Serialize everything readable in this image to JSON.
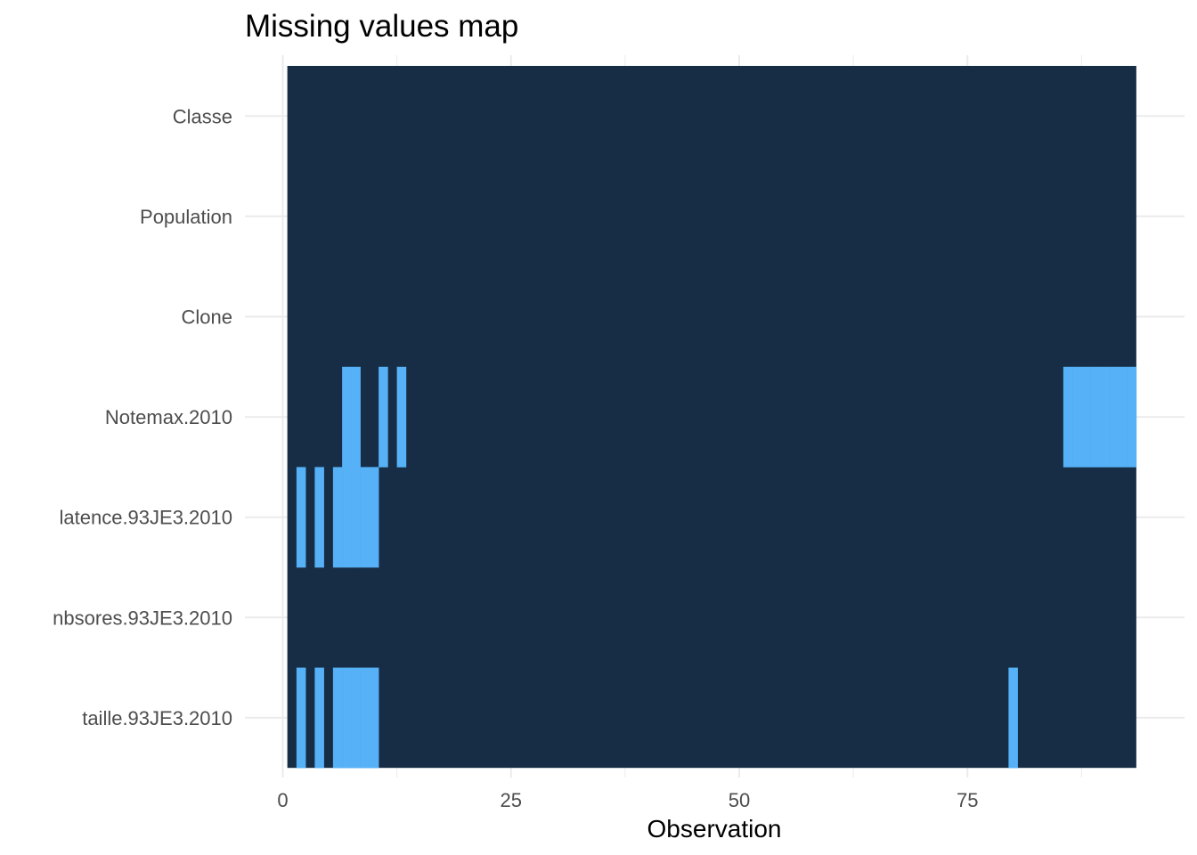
{
  "chart_data": {
    "type": "heatmap",
    "title": "Missing values map",
    "xlabel": "Observation",
    "ylabel": "",
    "xlim": [
      0,
      93.5
    ],
    "x_ticks": [
      "0",
      "25",
      "50",
      "75"
    ],
    "x_tick_values": [
      0,
      25,
      50,
      75
    ],
    "n_observations": 93,
    "variables": [
      "Classe",
      "Population",
      "Clone",
      "Notemax.2010",
      "latence.93JE3.2010",
      "nbsores.93JE3.2010",
      "taille.93JE3.2010"
    ],
    "missing": {
      "Classe": [],
      "Population": [],
      "Clone": [],
      "Notemax.2010": [
        7,
        8,
        11,
        13,
        86,
        87,
        88,
        89,
        90,
        91,
        92,
        93
      ],
      "latence.93JE3.2010": [
        2,
        4,
        6,
        7,
        8,
        9,
        10
      ],
      "nbsores.93JE3.2010": [],
      "taille.93JE3.2010": [
        2,
        4,
        6,
        7,
        8,
        9,
        10,
        80
      ]
    },
    "legend": "none",
    "grid": true,
    "colors": {
      "present": "#172d45",
      "missing": "#56b1f7",
      "grid": "#ebebeb",
      "axis_text": "#4d4d4d"
    }
  }
}
